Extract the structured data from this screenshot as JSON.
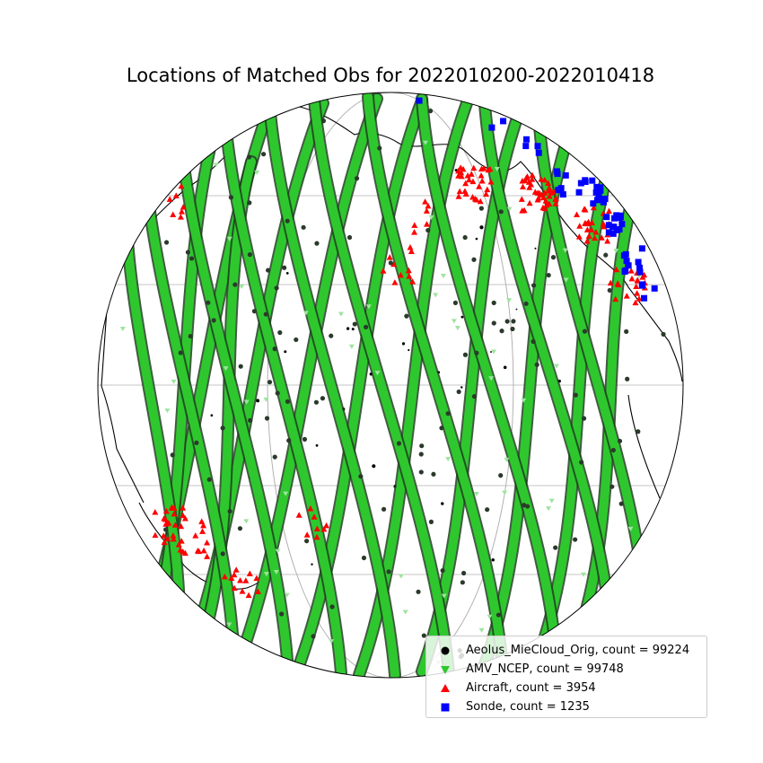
{
  "title": "Locations of Matched Obs for 2022010200-2022010418",
  "colors": {
    "aeolus": "#000000",
    "amv": "#2ec82e",
    "aircraft": "#ff0000",
    "sonde": "#0000ff",
    "gridline": "#b0b0b0",
    "coastline": "#000000"
  },
  "map": {
    "projection": "orthographic",
    "graticule": true,
    "coastlines": true
  },
  "legend": {
    "placement": "lower-right",
    "items": [
      {
        "marker": "circle",
        "color_key": "aeolus",
        "label": "Aeolus_MieCloud_Orig, count = 99224"
      },
      {
        "marker": "triangle-down",
        "color_key": "amv",
        "label": "AMV_NCEP, count = 99748"
      },
      {
        "marker": "triangle-up",
        "color_key": "aircraft",
        "label": "Aircraft, count = 3954"
      },
      {
        "marker": "square",
        "color_key": "sonde",
        "label": "Sonde, count = 1235"
      }
    ]
  }
}
